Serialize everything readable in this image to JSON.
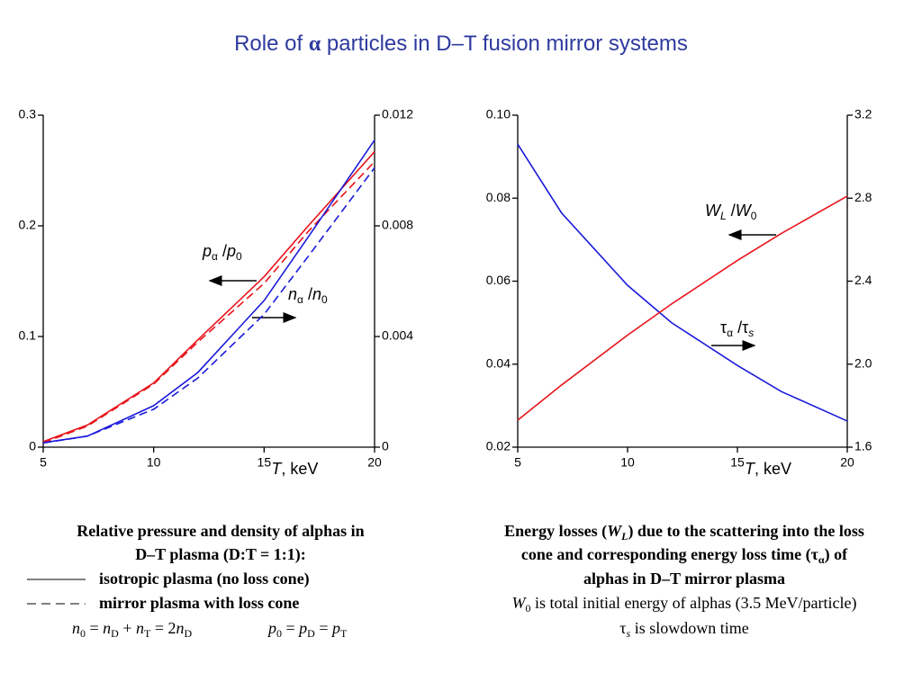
{
  "title": [
    "Role of ",
    "α",
    " particles in D–T fusion mirror systems"
  ],
  "chart_data": [
    {
      "type": "line",
      "x": [
        5,
        7,
        10,
        12,
        15,
        17,
        20
      ],
      "xlim": [
        5,
        20
      ],
      "xticks": [
        5,
        10,
        15,
        20
      ],
      "ylim": [
        0,
        0.3
      ],
      "yticks": [
        0,
        0.1,
        0.2,
        0.3
      ],
      "y2lim": [
        0,
        0.012
      ],
      "y2ticks": [
        0,
        0.004,
        0.008,
        0.012
      ],
      "xlabel": [
        "T",
        ", keV"
      ],
      "series": [
        {
          "color": "#e8141b",
          "dash": false,
          "values": [
            0.005,
            0.02,
            0.058,
            0.097,
            0.154,
            0.2,
            0.267
          ]
        },
        {
          "color": "#e8141b",
          "dash": true,
          "values": [
            0.004,
            0.019,
            0.057,
            0.095,
            0.148,
            0.195,
            0.258
          ]
        },
        {
          "color": "#1a1adb",
          "dash": false,
          "axis": "y2",
          "values": [
            0.00016,
            0.0004,
            0.0015,
            0.0027,
            0.0053,
            0.0076,
            0.0111
          ]
        },
        {
          "color": "#1a1adb",
          "dash": true,
          "axis": "y2",
          "values": [
            0.00015,
            0.0004,
            0.00137,
            0.0025,
            0.0048,
            0.0069,
            0.0101
          ]
        }
      ],
      "annotations": [
        [
          "p",
          "α",
          " /",
          "p",
          "0"
        ],
        [
          "n",
          "α",
          " /",
          "n",
          "0"
        ]
      ]
    },
    {
      "type": "line",
      "x": [
        5,
        7,
        10,
        12,
        15,
        17,
        20
      ],
      "xlim": [
        5,
        20
      ],
      "xticks": [
        5,
        10,
        15,
        20
      ],
      "ylim": [
        0.02,
        0.1
      ],
      "yticks": [
        0.02,
        0.04,
        0.06,
        0.08,
        {
          "value": 0.1,
          "label": "0.10"
        }
      ],
      "y2lim": [
        1.6,
        3.2
      ],
      "y2ticks": [
        1.6,
        {
          "value": 2,
          "label": "2.0"
        },
        2.4,
        2.8,
        3.2
      ],
      "xlabel": [
        "T",
        ", keV"
      ],
      "series": [
        {
          "color": "#1a1adb",
          "dash": false,
          "values": [
            0.093,
            0.0764,
            0.059,
            0.05,
            0.0397,
            0.0334,
            0.0263
          ]
        },
        {
          "color": "#e8141b",
          "dash": false,
          "axis": "y2",
          "values": [
            1.73,
            1.9,
            2.14,
            2.29,
            2.5,
            2.63,
            2.81
          ]
        }
      ],
      "annotations": [
        [
          "W",
          "L",
          " /",
          "W",
          "0"
        ],
        [
          "τ",
          "α",
          " /",
          "τ",
          "s"
        ]
      ]
    }
  ],
  "caption_left": {
    "lines": [
      "Relative pressure and density of alphas in",
      "D–T plasma (D:T = 1:1):"
    ],
    "legend": [
      "isotropic plasma (no loss cone)",
      "mirror plasma with loss cone"
    ],
    "formula1": [
      "n",
      "0",
      " = ",
      "n",
      "D",
      " + ",
      "n",
      "T",
      " = 2",
      "n",
      "D"
    ],
    "formula2": [
      "p",
      "0",
      " = ",
      "p",
      "D",
      " = ",
      "p",
      "T"
    ]
  },
  "caption_right": {
    "line1": [
      "Energy losses (",
      "W",
      "L",
      ") due to the scattering into the loss"
    ],
    "line2": [
      "cone and corresponding energy loss time (",
      "τ",
      "α",
      ") of"
    ],
    "line3": "alphas in D–T mirror plasma",
    "line4": [
      "W",
      "0",
      " is total initial energy of alphas (3.5 MeV/particle)"
    ],
    "line5": [
      "τ",
      "s",
      " is slowdown time"
    ]
  }
}
